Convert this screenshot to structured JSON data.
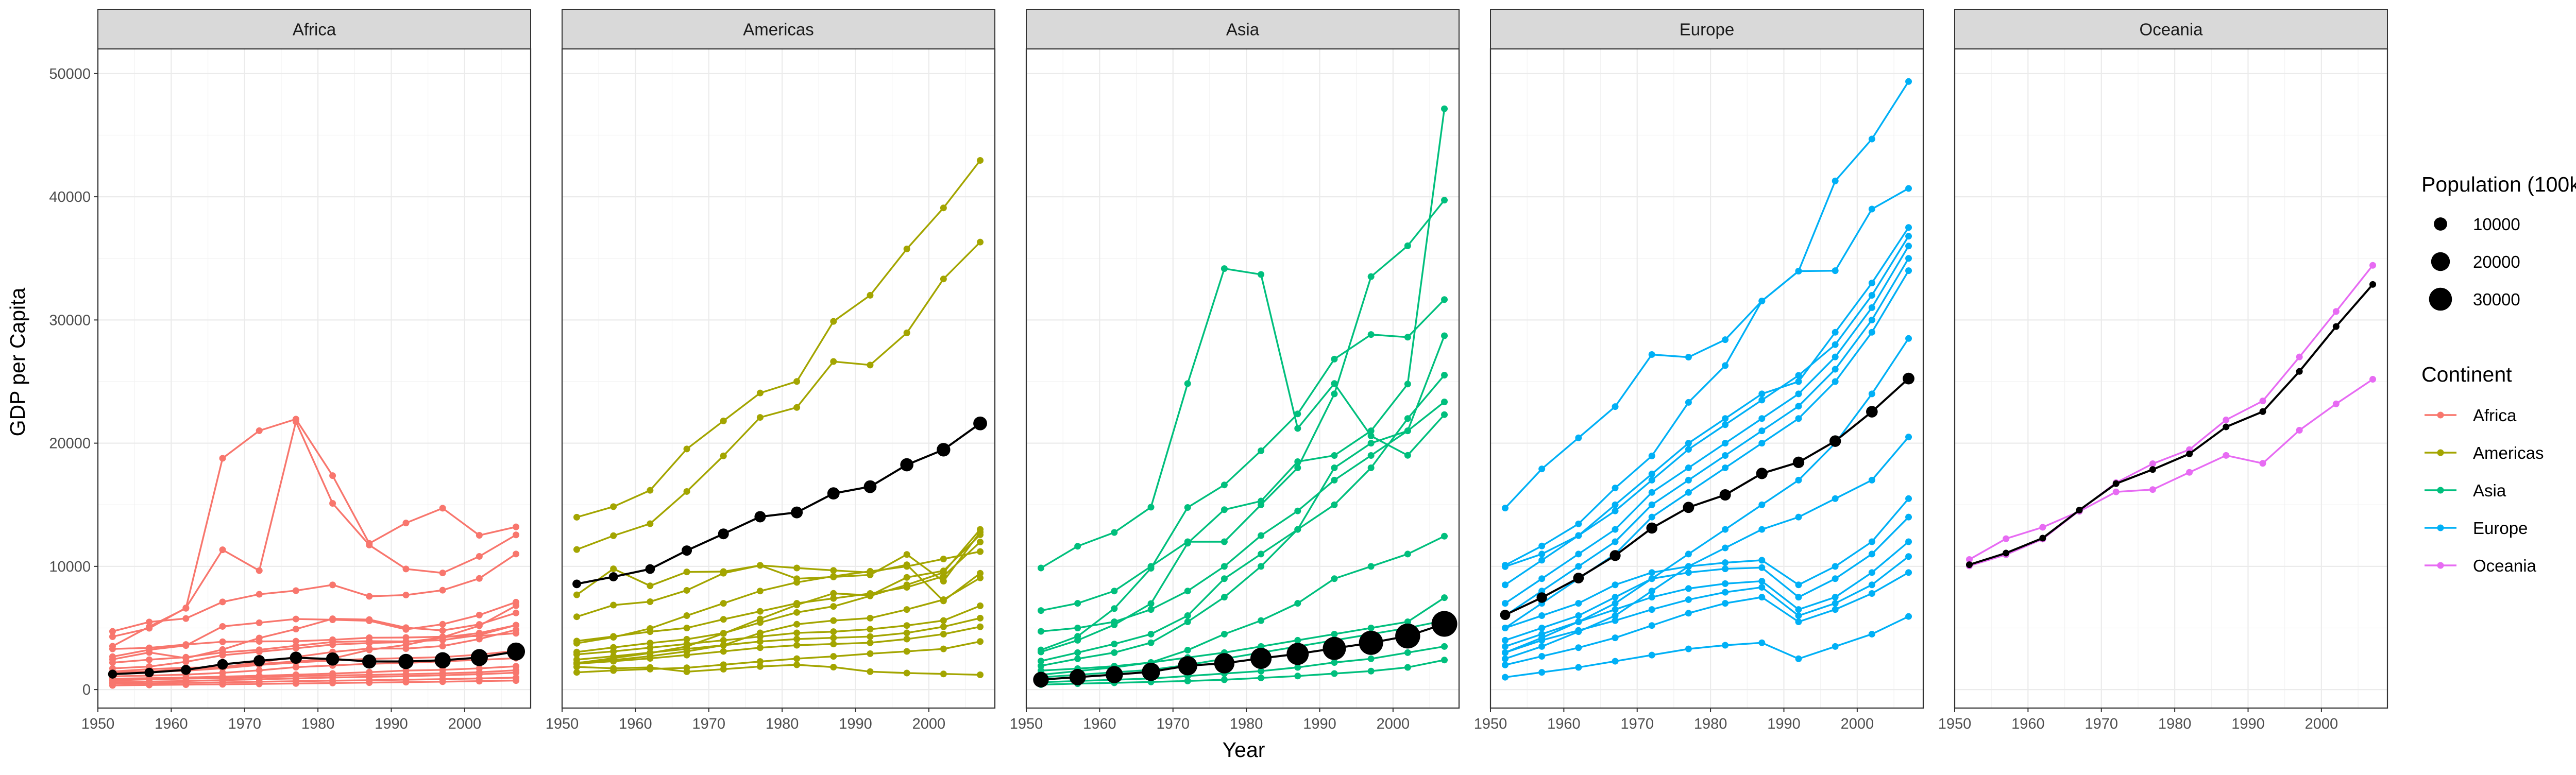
{
  "chart_data": {
    "type": "line",
    "facet_by": "continent",
    "xlabel": "Year",
    "ylabel": "GDP per Capita",
    "xlim": [
      1950,
      2009
    ],
    "ylim": [
      -1500,
      52000
    ],
    "xticks": [
      1950,
      1960,
      1970,
      1980,
      1990,
      2000
    ],
    "yticks": [
      0,
      10000,
      20000,
      30000,
      40000,
      50000
    ],
    "years": [
      1952,
      1957,
      1962,
      1967,
      1972,
      1977,
      1982,
      1987,
      1992,
      1997,
      2002,
      2007
    ],
    "grid": true,
    "facets": [
      {
        "name": "Africa",
        "color": "#F8766D",
        "overall_gdp": [
          1253,
          1385,
          1598,
          2050,
          2340,
          2586,
          2481,
          2282,
          2281,
          2379,
          2599,
          3089
        ],
        "overall_pop": [
          4570,
          5094,
          5740,
          6522,
          7454,
          8583,
          9920,
          11477,
          13156,
          14841,
          16604,
          18447
        ],
        "country_series": [
          [
            2449,
            3014,
            2551,
            3247,
            4183,
            4910,
            5745,
            5681,
            5023,
            4797,
            5288,
            6223
          ],
          [
            4725,
            5487,
            5768,
            7114,
            7736,
            8029,
            8496,
            7570,
            7676,
            8065,
            9021,
            11004
          ],
          [
            3521,
            5107,
            6597,
            18773,
            21011,
            21951,
            17364,
            11864,
            13522,
            14723,
            12522,
            13206
          ],
          [
            4294,
            4976,
            6631,
            11347,
            9657,
            21745,
            15113,
            11733,
            9789,
            9468,
            10811,
            12554
          ],
          [
            2670,
            3232,
            3574,
            5127,
            5424,
            5728,
            5668,
            5583,
            4882,
            5301,
            6049,
            7092
          ],
          [
            1468,
            1655,
            1777,
            1800,
            2081,
            2285,
            2524,
            3217,
            3630,
            4248,
            5179,
            6811
          ],
          [
            1418,
            1459,
            1693,
            1815,
            2217,
            2641,
            3052,
            3330,
            3326,
            3531,
            4099,
            4854
          ],
          [
            1718,
            1869,
            2253,
            2790,
            3070,
            3354,
            3650,
            3778,
            3853,
            4226,
            4590,
            5228
          ],
          [
            2188,
            2424,
            2625,
            3020,
            3226,
            3555,
            3862,
            3928,
            3907,
            4018,
            4432,
            5230
          ],
          [
            1310,
            1465,
            1529,
            1727,
            2000,
            2199,
            2366,
            2492,
            2556,
            2634,
            2838,
            3138
          ],
          [
            3299,
            3385,
            3656,
            3880,
            3910,
            3927,
            4044,
            4210,
            4225,
            4290,
            4350,
            4571
          ],
          [
            1071,
            1138,
            1217,
            1359,
            1560,
            1817,
            1955,
            2093,
            2160,
            2290,
            2412,
            2548
          ],
          [
            882,
            924,
            983,
            1048,
            1126,
            1208,
            1301,
            1413,
            1544,
            1600,
            1721,
            1889
          ],
          [
            743,
            828,
            892,
            920,
            989,
            1078,
            1140,
            1192,
            1252,
            1318,
            1405,
            1565
          ],
          [
            601,
            647,
            700,
            765,
            842,
            905,
            980,
            1031,
            1091,
            1162,
            1244,
            1372
          ],
          [
            488,
            512,
            545,
            585,
            634,
            683,
            725,
            762,
            802,
            849,
            902,
            970
          ],
          [
            339,
            373,
            400,
            428,
            460,
            494,
            531,
            565,
            602,
            640,
            685,
            730
          ]
        ]
      },
      {
        "name": "Americas",
        "color": "#A3A500",
        "overall_gdp": [
          8579,
          9155,
          9783,
          11286,
          12640,
          14029,
          14379,
          15923,
          16468,
          18248,
          19470,
          21603
        ],
        "overall_pop": [
          4250,
          4760,
          5340,
          5960,
          6590,
          7230,
          7890,
          8550,
          9200,
          9840,
          10460,
          10880
        ],
        "country_series": [
          [
            13990,
            14847,
            16173,
            19530,
            21806,
            24073,
            25010,
            29884,
            32004,
            35767,
            39097,
            42952
          ],
          [
            11367,
            12490,
            13462,
            16077,
            18971,
            22091,
            22899,
            26627,
            26343,
            28955,
            33329,
            36319
          ],
          [
            5911,
            6857,
            7133,
            8053,
            9443,
            10079,
            8998,
            9140,
            9308,
            10967,
            8798,
            12779
          ],
          [
            7690,
            9803,
            8423,
            9549,
            9575,
            10081,
            9870,
            9672,
            9500,
            10132,
            7200,
            9440
          ],
          [
            2141,
            2556,
            2958,
            3497,
            4547,
            5733,
            6868,
            7808,
            7650,
            9105,
            9636,
            12570
          ],
          [
            3940,
            4316,
            4700,
            5000,
            5700,
            6350,
            7000,
            7400,
            7800,
            8300,
            9200,
            11978
          ],
          [
            3048,
            3421,
            3776,
            4086,
            4576,
            5440,
            6261,
            6749,
            7600,
            8500,
            9500,
            13000
          ],
          [
            2177,
            2400,
            2707,
            3100,
            3600,
            4600,
            5300,
            5600,
            5800,
            6500,
            7300,
            9066
          ],
          [
            2857,
            3100,
            3400,
            3700,
            4000,
            4300,
            4600,
            4700,
            4900,
            5200,
            5600,
            6800
          ],
          [
            2428,
            2700,
            3000,
            3300,
            3600,
            3900,
            4100,
            4200,
            4300,
            4600,
            5100,
            5800
          ],
          [
            1397,
            1545,
            1662,
            1769,
            2018,
            2276,
            2508,
            2693,
            2915,
            3100,
            3300,
            3900
          ],
          [
            2097,
            2300,
            2530,
            2800,
            3100,
            3400,
            3600,
            3700,
            3800,
            4100,
            4500,
            5100
          ],
          [
            1840,
            1726,
            1796,
            1452,
            1654,
            1874,
            2011,
            1823,
            1456,
            1342,
            1270,
            1201
          ],
          [
            3758,
            4245,
            4957,
            6000,
            7000,
            8000,
            8700,
            9200,
            9600,
            10000,
            10600,
            11200
          ]
        ]
      },
      {
        "name": "Asia",
        "color": "#00BF7D",
        "overall_gdp": [
          806,
          1011,
          1214,
          1441,
          1934,
          2136,
          2534,
          2895,
          3338,
          3797,
          4346,
          5335
        ],
        "overall_pop": [
          13950,
          15200,
          16840,
          18800,
          21060,
          23230,
          25470,
          27880,
          30540,
          33130,
          35370,
          37600
        ],
        "country_series": [
          [
            9867,
            11636,
            12753,
            14805,
            24837,
            34168,
            33693,
            21198,
            24841,
            20586,
            19014,
            22316
          ],
          [
            3054,
            4002,
            5260,
            6979,
            11880,
            14600,
            15300,
            18500,
            19000,
            21000,
            24800,
            47143
          ],
          [
            3216,
            4318,
            6576,
            9847,
            14779,
            16610,
            19385,
            22375,
            26824,
            28817,
            28604,
            31656
          ],
          [
            6414,
            7000,
            8000,
            10000,
            12000,
            12000,
            15000,
            18000,
            24000,
            33519,
            36023,
            39725
          ],
          [
            2315,
            3000,
            3700,
            4500,
            6000,
            9000,
            11000,
            13000,
            15000,
            18000,
            22000,
            25523
          ],
          [
            1930,
            2500,
            3000,
            3800,
            5500,
            7500,
            10000,
            13000,
            18000,
            20000,
            21000,
            23348
          ],
          [
            4725,
            5000,
            5500,
            6500,
            8000,
            10000,
            12500,
            14500,
            17000,
            19000,
            21000,
            28718
          ],
          [
            1206,
            1500,
            1800,
            2200,
            3200,
            4500,
            5600,
            7000,
            9000,
            10000,
            11000,
            12451
          ],
          [
            1544,
            1700,
            1900,
            2200,
            2600,
            3000,
            3500,
            4000,
            4500,
            5000,
            5500,
            7458
          ],
          [
            1000,
            1200,
            1400,
            1600,
            2000,
            2500,
            3000,
            3500,
            4000,
            4500,
            5000,
            5600
          ],
          [
            600,
            700,
            800,
            900,
            1100,
            1300,
            1500,
            1800,
            2200,
            2500,
            3000,
            3500
          ],
          [
            400,
            480,
            550,
            620,
            700,
            800,
            950,
            1100,
            1300,
            1500,
            1800,
            2400
          ]
        ]
      },
      {
        "name": "Europe",
        "color": "#00B0F6",
        "overall_gdp": [
          6062,
          7467,
          9052,
          10879,
          13110,
          14789,
          15802,
          17543,
          18444,
          20166,
          22552,
          25244
        ],
        "overall_pop": [
          5900,
          6200,
          6500,
          6800,
          7000,
          7200,
          7300,
          7400,
          7500,
          7600,
          7700,
          7770
        ],
        "country_series": [
          [
            14734,
            17909,
            20431,
            22966,
            27195,
            26982,
            28398,
            31541,
            33965,
            41283,
            44684,
            49357
          ],
          [
            10095,
            11654,
            13450,
            16361,
            18965,
            23311,
            26298,
            31541,
            33965,
            34000,
            39000,
            40676
          ],
          [
            9980,
            11000,
            12500,
            15000,
            17500,
            20000,
            22000,
            24000,
            25000,
            29000,
            33000,
            37506
          ],
          [
            8500,
            10500,
            12500,
            14500,
            17000,
            19500,
            21500,
            23500,
            25500,
            28000,
            32000,
            36800
          ],
          [
            7000,
            9000,
            11000,
            13000,
            16000,
            18000,
            20000,
            22000,
            24000,
            27000,
            31000,
            36000
          ],
          [
            6000,
            8000,
            10000,
            12000,
            15000,
            17000,
            19000,
            21000,
            23000,
            26000,
            30000,
            35000
          ],
          [
            5000,
            7000,
            9000,
            11000,
            14000,
            16000,
            18000,
            20000,
            22000,
            25000,
            29000,
            34000
          ],
          [
            3000,
            4200,
            5500,
            7000,
            9000,
            11000,
            13000,
            15000,
            17000,
            20000,
            24000,
            28500
          ],
          [
            2500,
            3500,
            4700,
            6000,
            8000,
            10000,
            11500,
            13000,
            14000,
            15500,
            17000,
            20500
          ],
          [
            4000,
            5000,
            6000,
            7500,
            9000,
            9500,
            9800,
            9900,
            7500,
            9000,
            11000,
            14000
          ],
          [
            5000,
            6000,
            7000,
            8500,
            9500,
            10000,
            10300,
            10500,
            8500,
            10000,
            12000,
            15500
          ],
          [
            3500,
            4500,
            5500,
            6500,
            7500,
            8200,
            8600,
            8800,
            6500,
            7500,
            9500,
            12000
          ],
          [
            3000,
            4000,
            4800,
            5600,
            6500,
            7300,
            7900,
            8300,
            6000,
            7000,
            8500,
            10800
          ],
          [
            2000,
            2700,
            3400,
            4200,
            5200,
            6200,
            7000,
            7500,
            5500,
            6500,
            7800,
            9500
          ],
          [
            1000,
            1400,
            1800,
            2300,
            2800,
            3300,
            3600,
            3800,
            2500,
            3500,
            4500,
            5937
          ]
        ]
      },
      {
        "name": "Oceania",
        "color": "#E76BF3",
        "overall_gdp": [
          10135,
          11079,
          12294,
          14565,
          16717,
          17862,
          19129,
          21323,
          22562,
          25826,
          29466,
          32885
        ],
        "overall_pop": [
          520,
          577,
          646,
          712,
          792,
          855,
          930,
          1003,
          1100,
          1200,
          1270,
          1337
        ],
        "country_series": [
          [
            10040,
            10950,
            12217,
            14526,
            16789,
            18334,
            19477,
            21889,
            23425,
            26998,
            30688,
            34435
          ],
          [
            10557,
            12247,
            13176,
            14464,
            16046,
            16234,
            17632,
            19007,
            18363,
            21050,
            23190,
            25185
          ]
        ]
      }
    ],
    "legend": {
      "size_title": "Population (100k)",
      "size_labels": [
        "10000",
        "20000",
        "30000"
      ],
      "size_values": [
        10000,
        20000,
        30000
      ],
      "color_title": "Continent",
      "color_labels": [
        "Africa",
        "Americas",
        "Asia",
        "Europe",
        "Oceania"
      ],
      "color_values": [
        "#F8766D",
        "#A3A500",
        "#00BF7D",
        "#00B0F6",
        "#E76BF3"
      ],
      "placement": "right"
    }
  }
}
